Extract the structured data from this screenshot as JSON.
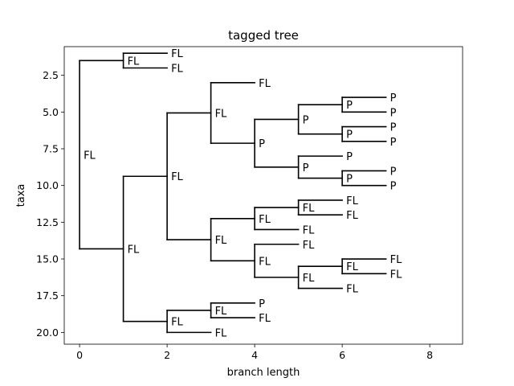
{
  "chart_data": {
    "type": "tree",
    "title": "tagged tree",
    "xlabel": "branch length",
    "ylabel": "taxa",
    "xlim": [
      -0.35,
      8.75
    ],
    "ylim": [
      20.8,
      0.55
    ],
    "x_ticks": [
      0,
      2,
      4,
      6,
      8
    ],
    "y_ticks": [
      2.5,
      5.0,
      7.5,
      10.0,
      12.5,
      15.0,
      17.5,
      20.0
    ],
    "y_tick_labels": [
      "2.5",
      "5.0",
      "7.5",
      "10.0",
      "12.5",
      "15.0",
      "17.5",
      "20.0"
    ],
    "tree": {
      "label": "FL",
      "x": 0,
      "children": [
        {
          "label": "FL",
          "x": 1,
          "children": [
            {
              "label": "FL",
              "x": 2,
              "leaf_y": 1
            },
            {
              "label": "FL",
              "x": 2,
              "leaf_y": 2
            }
          ]
        },
        {
          "label": "FL",
          "x": 1,
          "children": [
            {
              "label": "FL",
              "x": 2,
              "children": [
                {
                  "label": "FL",
                  "x": 3,
                  "children": [
                    {
                      "label": "FL",
                      "x": 4,
                      "leaf_y": 3
                    },
                    {
                      "label": "P",
                      "x": 4,
                      "children": [
                        {
                          "label": "P",
                          "x": 5,
                          "children": [
                            {
                              "label": "P",
                              "x": 6,
                              "children": [
                                {
                                  "label": "P",
                                  "x": 7,
                                  "leaf_y": 4
                                },
                                {
                                  "label": "P",
                                  "x": 7,
                                  "leaf_y": 5
                                }
                              ]
                            },
                            {
                              "label": "P",
                              "x": 6,
                              "children": [
                                {
                                  "label": "P",
                                  "x": 7,
                                  "leaf_y": 6
                                },
                                {
                                  "label": "P",
                                  "x": 7,
                                  "leaf_y": 7
                                }
                              ]
                            }
                          ]
                        },
                        {
                          "label": "P",
                          "x": 5,
                          "children": [
                            {
                              "label": "P",
                              "x": 6,
                              "leaf_y": 8
                            },
                            {
                              "label": "P",
                              "x": 6,
                              "children": [
                                {
                                  "label": "P",
                                  "x": 7,
                                  "leaf_y": 9
                                },
                                {
                                  "label": "P",
                                  "x": 7,
                                  "leaf_y": 10
                                }
                              ]
                            }
                          ]
                        }
                      ]
                    }
                  ]
                },
                {
                  "label": "FL",
                  "x": 3,
                  "children": [
                    {
                      "label": "FL",
                      "x": 4,
                      "children": [
                        {
                          "label": "FL",
                          "x": 5,
                          "children": [
                            {
                              "label": "FL",
                              "x": 6,
                              "leaf_y": 11
                            },
                            {
                              "label": "FL",
                              "x": 6,
                              "leaf_y": 12
                            }
                          ]
                        },
                        {
                          "label": "FL",
                          "x": 5,
                          "leaf_y": 13
                        }
                      ]
                    },
                    {
                      "label": "FL",
                      "x": 4,
                      "children": [
                        {
                          "label": "FL",
                          "x": 5,
                          "leaf_y": 14
                        },
                        {
                          "label": "FL",
                          "x": 5,
                          "children": [
                            {
                              "label": "FL",
                              "x": 6,
                              "children": [
                                {
                                  "label": "FL",
                                  "x": 7,
                                  "leaf_y": 15
                                },
                                {
                                  "label": "FL",
                                  "x": 7,
                                  "leaf_y": 16
                                }
                              ]
                            },
                            {
                              "label": "FL",
                              "x": 6,
                              "leaf_y": 17
                            }
                          ]
                        }
                      ]
                    }
                  ]
                }
              ]
            },
            {
              "label": "FL",
              "x": 2,
              "children": [
                {
                  "label": "FL",
                  "x": 3,
                  "children": [
                    {
                      "label": "P",
                      "x": 4,
                      "leaf_y": 18
                    },
                    {
                      "label": "FL",
                      "x": 4,
                      "leaf_y": 19
                    }
                  ]
                },
                {
                  "label": "FL",
                  "x": 3,
                  "leaf_y": 20
                }
              ]
            }
          ]
        }
      ]
    }
  }
}
